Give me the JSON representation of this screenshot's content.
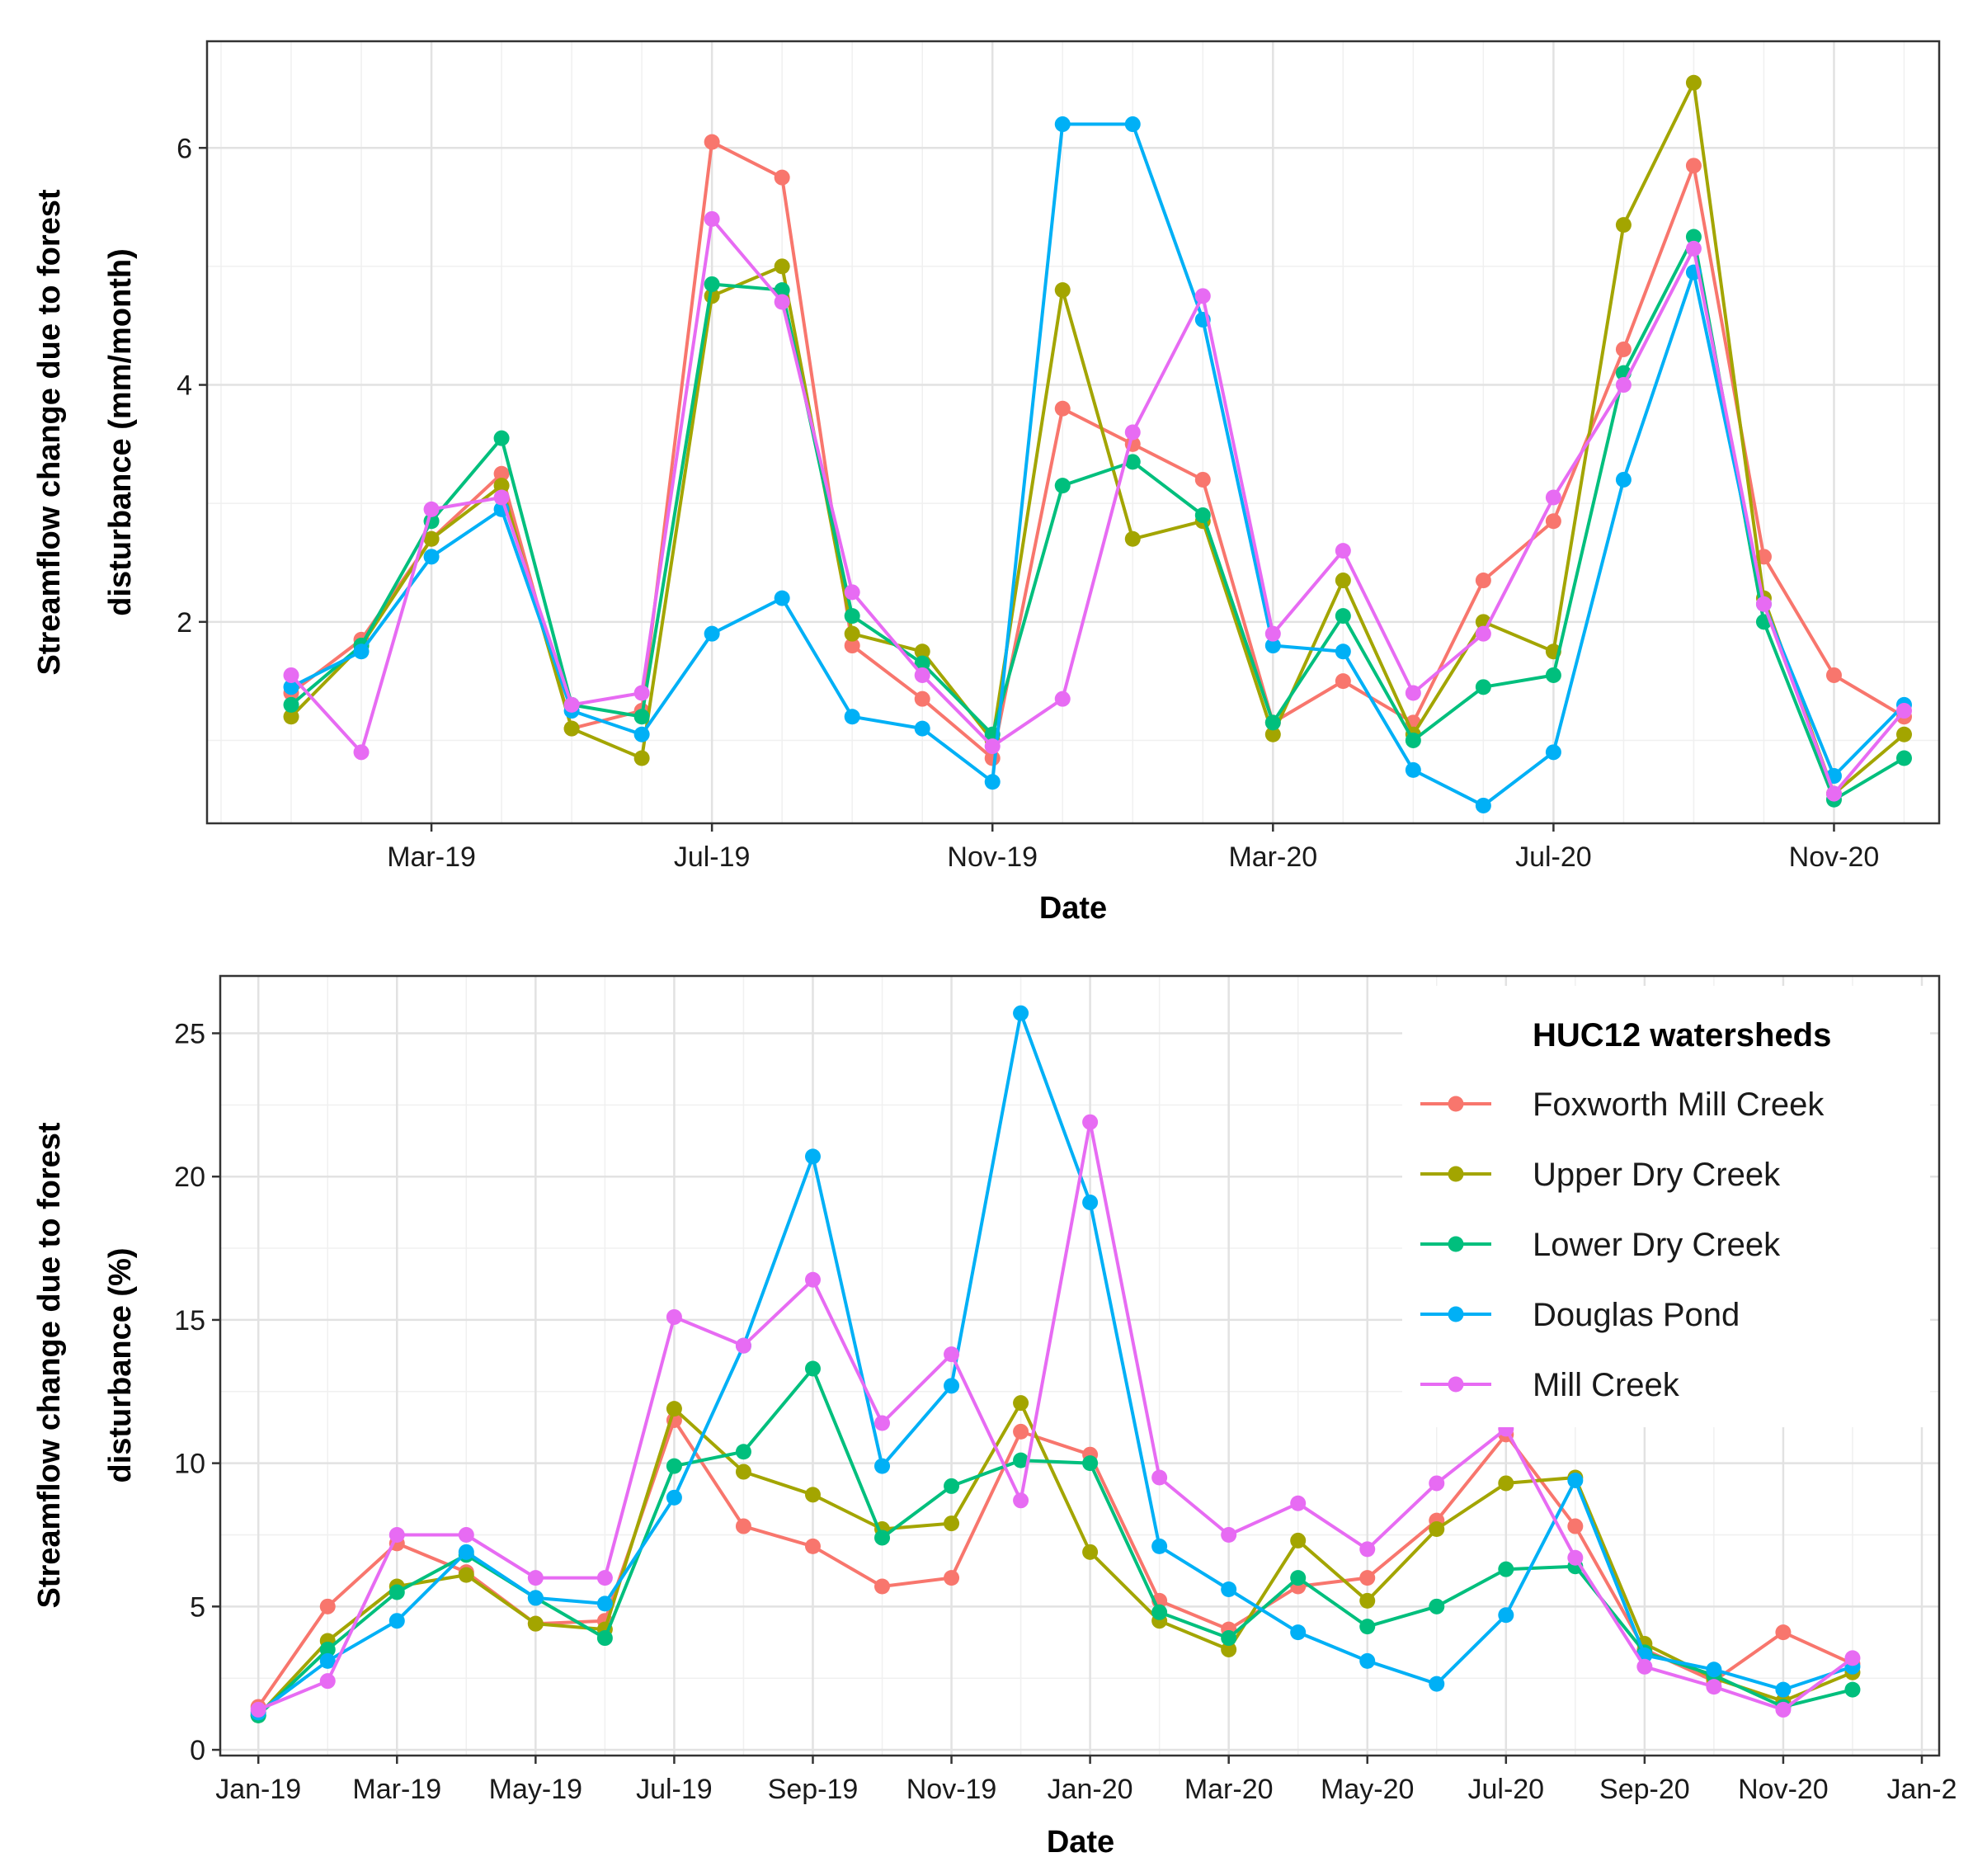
{
  "legend": {
    "title": "HUC12 watersheds"
  },
  "series_colors": {
    "Foxworth Mill Creek": "#F8766D",
    "Upper Dry Creek": "#A3A500",
    "Lower Dry Creek": "#00BF7D",
    "Douglas Pond": "#00B0F6",
    "Mill Creek": "#E76BF3"
  },
  "chart_data": [
    {
      "type": "line",
      "title": "",
      "xlabel": "Date",
      "ylabel": "Streamflow change due to forest disturbance (mm/month)",
      "ylabel_lines": [
        "Streamflow change due to forest",
        "disturbance (mm/month)"
      ],
      "x_months": [
        1,
        2,
        3,
        4,
        5,
        6,
        7,
        8,
        9,
        10,
        11,
        12,
        13,
        14,
        15,
        16,
        17,
        18,
        19,
        20,
        21,
        22,
        23,
        24
      ],
      "xlim": [
        -0.2,
        24.5
      ],
      "ylim": [
        0.3,
        6.9
      ],
      "xticks": [
        {
          "x": 3,
          "label": "Mar-19"
        },
        {
          "x": 7,
          "label": "Jul-19"
        },
        {
          "x": 11,
          "label": "Nov-19"
        },
        {
          "x": 15,
          "label": "Mar-20"
        },
        {
          "x": 19,
          "label": "Jul-20"
        },
        {
          "x": 23,
          "label": "Nov-20"
        }
      ],
      "yticks": [
        2,
        4,
        6
      ],
      "legend": false,
      "series": [
        {
          "name": "Foxworth Mill Creek",
          "values": [
            1.4,
            1.85,
            2.7,
            3.25,
            1.1,
            1.25,
            6.05,
            5.75,
            1.8,
            1.35,
            0.85,
            3.8,
            3.5,
            3.2,
            1.15,
            1.5,
            1.15,
            2.35,
            2.85,
            4.3,
            5.85,
            2.55,
            1.55,
            1.2
          ]
        },
        {
          "name": "Upper Dry Creek",
          "values": [
            1.2,
            1.8,
            2.7,
            3.15,
            1.1,
            0.85,
            4.75,
            5.0,
            1.9,
            1.75,
            1.0,
            4.8,
            2.7,
            2.85,
            1.05,
            2.35,
            1.05,
            2.0,
            1.75,
            5.35,
            6.55,
            2.2,
            0.55,
            1.05
          ]
        },
        {
          "name": "Lower Dry Creek",
          "values": [
            1.3,
            1.8,
            2.85,
            3.55,
            1.3,
            1.2,
            4.85,
            4.8,
            2.05,
            1.65,
            1.05,
            3.15,
            3.35,
            2.9,
            1.15,
            2.05,
            1.0,
            1.45,
            1.55,
            4.1,
            5.25,
            2.0,
            0.5,
            0.85
          ]
        },
        {
          "name": "Douglas Pond",
          "values": [
            1.45,
            1.75,
            2.55,
            2.95,
            1.25,
            1.05,
            1.9,
            2.2,
            1.2,
            1.1,
            0.65,
            6.2,
            6.2,
            4.55,
            1.8,
            1.75,
            0.75,
            0.45,
            0.9,
            3.2,
            4.95,
            2.15,
            0.7,
            1.3
          ]
        },
        {
          "name": "Mill Creek",
          "values": [
            1.55,
            0.9,
            2.95,
            3.05,
            1.3,
            1.4,
            5.4,
            4.7,
            2.25,
            1.55,
            0.95,
            1.35,
            3.6,
            4.75,
            1.9,
            2.6,
            1.4,
            1.9,
            3.05,
            4.0,
            5.15,
            2.15,
            0.55,
            1.25
          ]
        }
      ]
    },
    {
      "type": "line",
      "title": "",
      "xlabel": "Date",
      "ylabel": "Streamflow change due to forest disturbance (%)",
      "ylabel_lines": [
        "Streamflow change due to forest",
        "disturbance (%)"
      ],
      "x_months": [
        1,
        2,
        3,
        4,
        5,
        6,
        7,
        8,
        9,
        10,
        11,
        12,
        13,
        14,
        15,
        16,
        17,
        18,
        19,
        20,
        21,
        22,
        23,
        24
      ],
      "xlim": [
        0.45,
        25.25
      ],
      "ylim": [
        -0.2,
        27.0
      ],
      "xticks": [
        {
          "x": 1,
          "label": "Jan-19"
        },
        {
          "x": 3,
          "label": "Mar-19"
        },
        {
          "x": 5,
          "label": "May-19"
        },
        {
          "x": 7,
          "label": "Jul-19"
        },
        {
          "x": 9,
          "label": "Sep-19"
        },
        {
          "x": 11,
          "label": "Nov-19"
        },
        {
          "x": 13,
          "label": "Jan-20"
        },
        {
          "x": 15,
          "label": "Mar-20"
        },
        {
          "x": 17,
          "label": "May-20"
        },
        {
          "x": 19,
          "label": "Jul-20"
        },
        {
          "x": 21,
          "label": "Sep-20"
        },
        {
          "x": 23,
          "label": "Nov-20"
        },
        {
          "x": 25,
          "label": "Jan-2"
        }
      ],
      "yticks": [
        0,
        5,
        10,
        15,
        20,
        25
      ],
      "legend": true,
      "legend_position": "top-right",
      "series": [
        {
          "name": "Foxworth Mill Creek",
          "values": [
            1.5,
            5.0,
            7.2,
            6.2,
            4.4,
            4.5,
            11.5,
            7.8,
            7.1,
            5.7,
            6.0,
            11.1,
            10.3,
            5.2,
            4.2,
            5.7,
            6.0,
            8.0,
            11.0,
            7.8,
            3.5,
            2.4,
            4.1,
            3.0
          ]
        },
        {
          "name": "Upper Dry Creek",
          "values": [
            1.2,
            3.8,
            5.7,
            6.1,
            4.4,
            4.2,
            11.9,
            9.7,
            8.9,
            7.7,
            7.9,
            12.1,
            6.9,
            4.5,
            3.5,
            7.3,
            5.2,
            7.7,
            9.3,
            9.5,
            3.7,
            2.5,
            1.7,
            2.7
          ]
        },
        {
          "name": "Lower Dry Creek",
          "values": [
            1.2,
            3.5,
            5.5,
            6.8,
            5.3,
            3.9,
            9.9,
            10.4,
            13.3,
            7.4,
            9.2,
            10.1,
            10.0,
            4.8,
            3.9,
            6.0,
            4.3,
            5.0,
            6.3,
            6.4,
            3.4,
            2.6,
            1.5,
            2.1
          ]
        },
        {
          "name": "Douglas Pond",
          "values": [
            1.3,
            3.1,
            4.5,
            6.9,
            5.3,
            5.1,
            8.8,
            14.1,
            20.7,
            9.9,
            12.7,
            25.7,
            19.1,
            7.1,
            5.6,
            4.1,
            3.1,
            2.3,
            4.7,
            9.4,
            3.3,
            2.8,
            2.1,
            2.9
          ]
        },
        {
          "name": "Mill Creek",
          "values": [
            1.4,
            2.4,
            7.5,
            7.5,
            6.0,
            6.0,
            15.1,
            14.1,
            16.4,
            11.4,
            13.8,
            8.7,
            21.9,
            9.5,
            7.5,
            8.6,
            7.0,
            9.3,
            11.2,
            6.7,
            2.9,
            2.2,
            1.4,
            3.2
          ]
        }
      ]
    }
  ]
}
